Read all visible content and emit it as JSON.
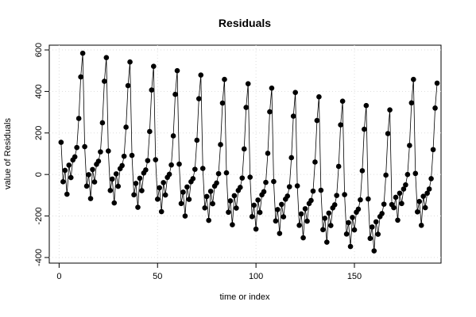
{
  "chart_data": {
    "type": "line",
    "title": "Residuals",
    "x_label": "time or index",
    "y_label": "value of Residuals",
    "x": [
      1,
      2,
      3,
      4,
      5,
      6,
      7,
      8,
      9,
      10,
      11,
      12,
      13,
      14,
      15,
      16,
      17,
      18,
      19,
      20,
      21,
      22,
      23,
      24,
      25,
      26,
      27,
      28,
      29,
      30,
      31,
      32,
      33,
      34,
      35,
      36,
      37,
      38,
      39,
      40,
      41,
      42,
      43,
      44,
      45,
      46,
      47,
      48,
      49,
      50,
      51,
      52,
      53,
      54,
      55,
      56,
      57,
      58,
      59,
      60,
      61,
      62,
      63,
      64,
      65,
      66,
      67,
      68,
      69,
      70,
      71,
      72,
      73,
      74,
      75,
      76,
      77,
      78,
      79,
      80,
      81,
      82,
      83,
      84,
      85,
      86,
      87,
      88,
      89,
      90,
      91,
      92,
      93,
      94,
      95,
      96,
      97,
      98,
      99,
      100,
      101,
      102,
      103,
      104,
      105,
      106,
      107,
      108,
      109,
      110,
      111,
      112,
      113,
      114,
      115,
      116,
      117,
      118,
      119,
      120,
      121,
      122,
      123,
      124,
      125,
      126,
      127,
      128,
      129,
      130,
      131,
      132,
      133,
      134,
      135,
      136,
      137,
      138,
      139,
      140,
      141,
      142,
      143,
      144,
      145,
      146,
      147,
      148,
      149,
      150,
      151,
      152,
      153,
      154,
      155,
      156,
      157,
      158,
      159,
      160,
      161,
      162,
      163,
      164,
      165,
      166,
      167,
      168,
      169,
      170,
      171,
      172,
      173,
      174,
      175,
      176,
      177,
      178,
      179,
      180,
      181,
      182,
      183,
      184,
      185,
      186,
      187,
      188,
      189,
      190,
      191,
      192
    ],
    "values": [
      155,
      -35,
      20,
      -95,
      45,
      -15,
      70,
      85,
      130,
      270,
      470,
      584,
      134,
      -56,
      -1,
      -116,
      24,
      -36,
      49,
      64,
      109,
      249,
      449,
      563,
      113,
      -77,
      -22,
      -137,
      3,
      -57,
      28,
      43,
      88,
      228,
      428,
      542,
      92,
      -98,
      -43,
      -158,
      -18,
      -78,
      7,
      22,
      67,
      207,
      407,
      521,
      71,
      -119,
      -64,
      -179,
      -39,
      -99,
      -14,
      1,
      46,
      186,
      386,
      500,
      50,
      -140,
      -85,
      -200,
      -60,
      -120,
      -35,
      -20,
      25,
      165,
      365,
      479,
      29,
      -161,
      -106,
      -221,
      -81,
      -141,
      -56,
      -41,
      4,
      144,
      344,
      458,
      8,
      -182,
      -127,
      -242,
      -102,
      -162,
      -77,
      -62,
      -17,
      123,
      323,
      437,
      -13,
      -203,
      -148,
      -263,
      -123,
      -183,
      -98,
      -83,
      -38,
      102,
      302,
      416,
      -34,
      -224,
      -169,
      -284,
      -144,
      -204,
      -119,
      -104,
      -59,
      81,
      281,
      395,
      -55,
      -245,
      -190,
      -305,
      -165,
      -225,
      -140,
      -125,
      -80,
      60,
      260,
      374,
      -76,
      -266,
      -211,
      -326,
      -186,
      -246,
      -161,
      -146,
      -101,
      39,
      239,
      353,
      -97,
      -287,
      -232,
      -347,
      -207,
      -267,
      -182,
      -167,
      -122,
      18,
      218,
      332,
      -118,
      -308,
      -253,
      -368,
      -228,
      -288,
      -203,
      -188,
      -143,
      -3,
      197,
      311,
      -145,
      -160,
      -110,
      -220,
      -90,
      -140,
      -70,
      -50,
      0,
      140,
      345,
      458,
      5,
      -180,
      -130,
      -245,
      -105,
      -160,
      -90,
      -70,
      -20,
      120,
      320,
      440
    ],
    "color": "#000000",
    "xlim": [
      -5,
      194
    ],
    "xticks": [
      0,
      50,
      100,
      150
    ],
    "ylim": [
      -427,
      623
    ],
    "yticks": [
      -400,
      -200,
      0,
      200,
      400,
      600
    ],
    "grid": true
  }
}
